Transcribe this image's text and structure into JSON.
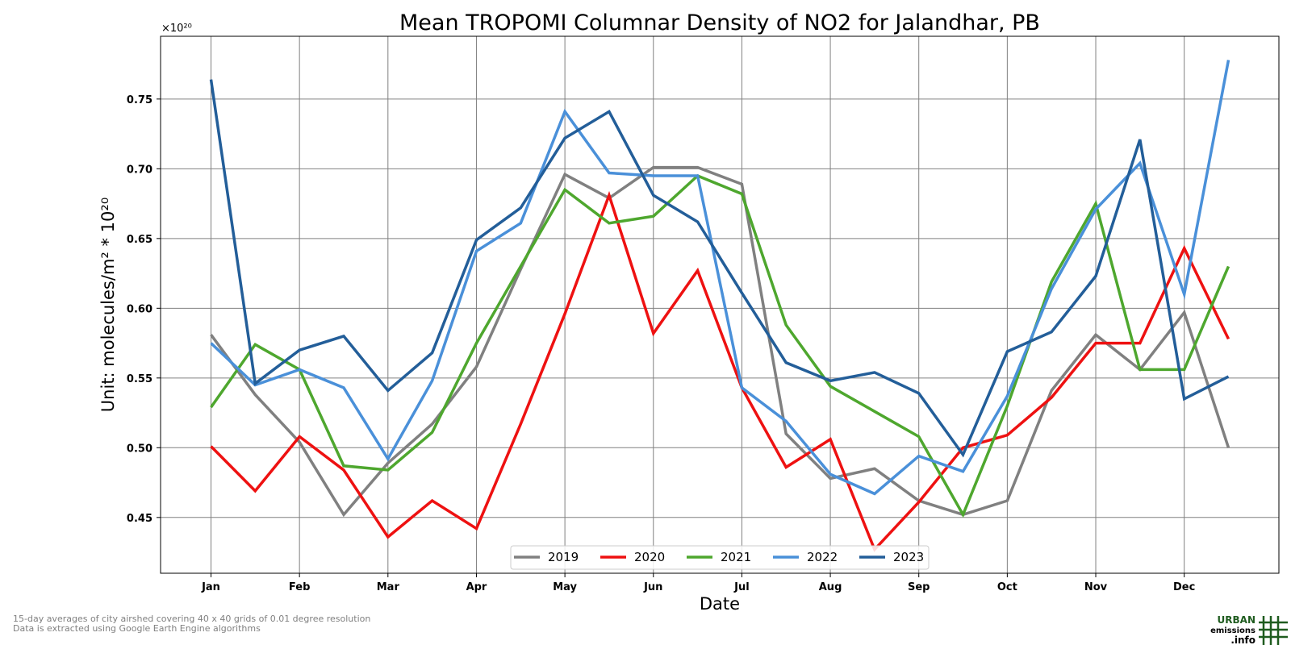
{
  "footnotes": {
    "line1": "15-day averages of city airshed covering 40 x 40 grids of 0.01 degree resolution",
    "line2": "Data is extracted using Google Earth Engine algorithms"
  },
  "logo": {
    "line1": "URBAN",
    "line2": "emissions",
    "line3": ".info",
    "color": "#1f5c1f"
  },
  "chart_data": {
    "type": "line",
    "title": "Mean TROPOMI Columnar Density of NO2 for Jalandhar, PB",
    "xlabel": "Date",
    "ylabel": "Unit: molecules/m² * 10²⁰",
    "y_offset_label": "×10²⁰",
    "x_tick_labels": [
      "Jan",
      "Feb",
      "Mar",
      "Apr",
      "May",
      "Jun",
      "Jul",
      "Aug",
      "Sep",
      "Oct",
      "Nov",
      "Dec"
    ],
    "x": [
      0,
      0.5,
      1,
      1.5,
      2,
      2.5,
      3,
      3.5,
      4,
      4.5,
      5,
      5.5,
      6,
      6.5,
      7,
      7.5,
      8,
      8.5,
      9,
      9.5,
      10,
      10.5,
      11,
      11.5
    ],
    "xlim": [
      -0.57,
      12.07
    ],
    "y_ticks": [
      0.45,
      0.5,
      0.55,
      0.6,
      0.65,
      0.7,
      0.75
    ],
    "y_tick_labels": [
      "0.45",
      "0.50",
      "0.55",
      "0.60",
      "0.65",
      "0.70",
      "0.75"
    ],
    "ylim": [
      0.41,
      0.795
    ],
    "grid": true,
    "legend_position": "bottom-center",
    "series": [
      {
        "name": "2019",
        "color": "#808080",
        "values": [
          0.581,
          0.538,
          0.504,
          0.452,
          0.489,
          0.517,
          0.558,
          0.628,
          0.696,
          0.679,
          0.701,
          0.701,
          0.689,
          0.51,
          0.478,
          0.485,
          0.462,
          0.452,
          0.462,
          0.541,
          0.581,
          0.556,
          0.597,
          0.5
        ]
      },
      {
        "name": "2020",
        "color": "#ee1111",
        "values": [
          0.501,
          0.469,
          0.508,
          0.484,
          0.436,
          0.462,
          0.442,
          0.517,
          0.596,
          0.681,
          0.582,
          0.627,
          0.543,
          0.486,
          0.506,
          0.427,
          0.461,
          0.5,
          0.509,
          0.536,
          0.575,
          0.575,
          0.643,
          0.578
        ]
      },
      {
        "name": "2021",
        "color": "#4ea72e",
        "values": [
          0.529,
          0.574,
          0.556,
          0.487,
          0.484,
          0.511,
          0.575,
          0.63,
          0.685,
          0.661,
          0.666,
          0.695,
          0.682,
          0.588,
          0.544,
          0.526,
          0.508,
          0.452,
          0.53,
          0.619,
          0.675,
          0.556,
          0.556,
          0.63
        ]
      },
      {
        "name": "2022",
        "color": "#4a90d9",
        "values": [
          0.575,
          0.545,
          0.556,
          0.543,
          0.492,
          0.548,
          0.641,
          0.661,
          0.741,
          0.697,
          0.695,
          0.695,
          0.543,
          0.519,
          0.481,
          0.467,
          0.494,
          0.483,
          0.537,
          0.614,
          0.671,
          0.704,
          0.61,
          0.778
        ]
      },
      {
        "name": "2023",
        "color": "#235e99",
        "values": [
          0.764,
          0.546,
          0.57,
          0.58,
          0.541,
          0.568,
          0.649,
          0.672,
          0.722,
          0.741,
          0.681,
          0.662,
          0.611,
          0.561,
          0.548,
          0.554,
          0.539,
          0.495,
          0.569,
          0.583,
          0.623,
          0.721,
          0.535,
          0.551
        ]
      }
    ]
  }
}
